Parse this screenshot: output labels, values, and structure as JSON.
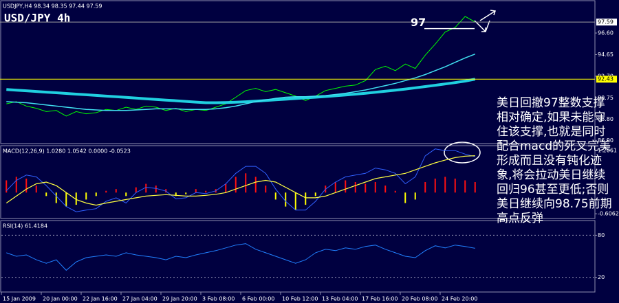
{
  "header": {
    "symbol_line": "USDJPY,H4  98.34 98.35 97.44 97.59",
    "title": "USD/JPY 4h"
  },
  "note": "美日回撤97整数支撑相对确定,如果未能守住该支撑,也就是同时配合macd的死叉完美形成而且没有钝化迹象,将会拉动美日继续回归96甚至更低;否则美日继续向98.75前期高点反弹",
  "chart_data": [
    {
      "type": "line",
      "annotation": {
        "text": "97",
        "value": 97
      },
      "hlines": [
        {
          "value": 92.43,
          "color": "#ffff00"
        },
        {
          "value": 97.59,
          "color": "#a0a0a0"
        }
      ],
      "ylim": [
        86.67,
        99.46
      ],
      "yticks": [
        {
          "value": 96.6,
          "label": "96.60"
        },
        {
          "value": 94.65,
          "label": "94.65"
        },
        {
          "value": 92.7,
          "label": "92.70"
        },
        {
          "value": 90.75,
          "label": "90.75"
        },
        {
          "value": 88.8,
          "label": "88.80"
        },
        {
          "value": 86.9,
          "label": "86.90"
        }
      ],
      "series": [
        {
          "color": "#00ff00",
          "line_width": 1,
          "values": [
            90.2,
            90.4,
            90.0,
            89.8,
            89.5,
            89.6,
            89.1,
            89.5,
            89.3,
            89.4,
            89.7,
            89.6,
            89.9,
            89.7,
            90.0,
            89.9,
            89.6,
            89.8,
            89.5,
            89.7,
            89.6,
            89.9,
            90.2,
            90.8,
            91.4,
            91.6,
            91.3,
            91.5,
            91.2,
            90.9,
            90.5,
            90.9,
            91.4,
            91.6,
            91.8,
            91.9,
            92.3,
            93.3,
            93.6,
            93.2,
            93.8,
            93.4,
            94.6,
            95.6,
            96.7,
            97.1,
            98.1,
            97.59
          ]
        },
        {
          "color": "#20d0e0",
          "line_width": 4,
          "values": [
            91.5,
            91.44,
            91.38,
            91.32,
            91.26,
            91.2,
            91.14,
            91.08,
            91.02,
            90.96,
            90.9,
            90.84,
            90.78,
            90.72,
            90.66,
            90.6,
            90.54,
            90.48,
            90.42,
            90.36,
            90.3,
            90.3,
            90.32,
            90.35,
            90.39,
            90.44,
            90.5,
            90.56,
            90.62,
            90.68,
            90.74,
            90.8,
            90.86,
            90.93,
            91.0,
            91.08,
            91.16,
            91.25,
            91.34,
            91.44,
            91.54,
            91.65,
            91.76,
            91.88,
            92.0,
            92.12,
            92.26,
            92.43
          ]
        },
        {
          "color": "#40e0f0",
          "line_width": 1.5,
          "values": [
            90.4,
            90.35,
            90.3,
            90.2,
            90.1,
            90.0,
            89.9,
            89.8,
            89.7,
            89.65,
            89.6,
            89.6,
            89.6,
            89.65,
            89.7,
            89.75,
            89.75,
            89.75,
            89.7,
            89.7,
            89.7,
            89.75,
            89.85,
            90.0,
            90.2,
            90.4,
            90.55,
            90.7,
            90.8,
            90.85,
            90.85,
            90.9,
            90.95,
            91.05,
            91.15,
            91.3,
            91.45,
            91.65,
            91.85,
            92.05,
            92.3,
            92.55,
            92.85,
            93.2,
            93.55,
            93.95,
            94.35,
            94.7
          ]
        }
      ]
    },
    {
      "type": "macd",
      "label": "MACD(12,26,9) 1.0280 1.0542 0.0000 -0.0523",
      "ylim": [
        -0.722,
        1.322
      ],
      "yticks": [
        1.2061,
        -0.6062
      ],
      "histogram": {
        "up_color": "#ff1010",
        "down_color": "#ffff00",
        "values": [
          0.35,
          0.45,
          0.4,
          0.2,
          -0.1,
          -0.3,
          -0.4,
          -0.35,
          -0.2,
          -0.1,
          0.05,
          0.1,
          -0.1,
          0.15,
          0.25,
          0.2,
          0.1,
          -0.1,
          -0.05,
          0.1,
          0.05,
          0.1,
          0.25,
          0.45,
          0.55,
          0.45,
          0.2,
          -0.2,
          -0.4,
          -0.5,
          -0.35,
          -0.1,
          0.2,
          0.3,
          0.35,
          0.3,
          0.25,
          0.3,
          0.2,
          0.05,
          -0.3,
          -0.2,
          0.3,
          0.4,
          0.45,
          0.4,
          0.35,
          0.3
        ]
      },
      "series": [
        {
          "color": "#3060ff",
          "line_width": 1,
          "values": [
            0.05,
            0.35,
            0.5,
            0.45,
            0.2,
            -0.1,
            -0.4,
            -0.55,
            -0.5,
            -0.46,
            -0.25,
            -0.15,
            -0.3,
            0.0,
            0.15,
            0.12,
            0.04,
            -0.18,
            -0.15,
            0.0,
            -0.03,
            0.05,
            0.25,
            0.55,
            0.75,
            0.75,
            0.55,
            0.1,
            -0.25,
            -0.5,
            -0.5,
            -0.25,
            0.1,
            0.3,
            0.45,
            0.5,
            0.55,
            0.7,
            0.65,
            0.55,
            0.25,
            0.45,
            1.05,
            1.25,
            1.2,
            1.2,
            1.1,
            1.028
          ]
        },
        {
          "color": "#ffff40",
          "line_width": 1.2,
          "values": [
            -0.3,
            -0.1,
            0.1,
            0.25,
            0.3,
            0.2,
            0.0,
            -0.2,
            -0.3,
            -0.36,
            -0.3,
            -0.25,
            -0.2,
            -0.15,
            -0.1,
            -0.08,
            -0.06,
            -0.08,
            -0.1,
            -0.1,
            -0.08,
            -0.05,
            0.0,
            0.1,
            0.2,
            0.3,
            0.35,
            0.3,
            0.15,
            0.0,
            -0.15,
            -0.15,
            -0.1,
            0.0,
            0.1,
            0.2,
            0.3,
            0.4,
            0.45,
            0.5,
            0.55,
            0.65,
            0.75,
            0.85,
            0.93,
            1.0,
            1.04,
            1.0542
          ]
        }
      ]
    },
    {
      "type": "line",
      "label": "RSI(14) 61.4184",
      "ylim": [
        0,
        100
      ],
      "yticks": [
        80,
        20
      ],
      "grid": true,
      "categories": [
        "15 Jan 2009",
        null,
        null,
        null,
        "20 Jan 00:00",
        null,
        null,
        null,
        "22 Jan 16:00",
        null,
        null,
        null,
        "27 Jan 04:00",
        null,
        null,
        null,
        "29 Jan 20:00",
        null,
        null,
        null,
        "3 Feb 08:00",
        null,
        null,
        null,
        "6 Feb 00:00",
        null,
        null,
        null,
        "10 Feb 12:00",
        null,
        null,
        null,
        "13 Feb 04:00",
        null,
        null,
        null,
        "17 Feb 16:00",
        null,
        null,
        null,
        "20 Feb 08:00",
        null,
        null,
        null,
        "24 Feb 20:00",
        null,
        null,
        null
      ],
      "series": [
        {
          "color": "#2080ff",
          "line_width": 1,
          "values": [
            55,
            50,
            52,
            45,
            40,
            45,
            30,
            42,
            48,
            50,
            52,
            50,
            55,
            52,
            50,
            48,
            45,
            50,
            48,
            52,
            55,
            58,
            62,
            66,
            68,
            60,
            55,
            50,
            45,
            40,
            45,
            55,
            60,
            58,
            62,
            60,
            64,
            66,
            60,
            55,
            50,
            48,
            58,
            65,
            62,
            66,
            64,
            61.4184
          ]
        }
      ]
    }
  ]
}
